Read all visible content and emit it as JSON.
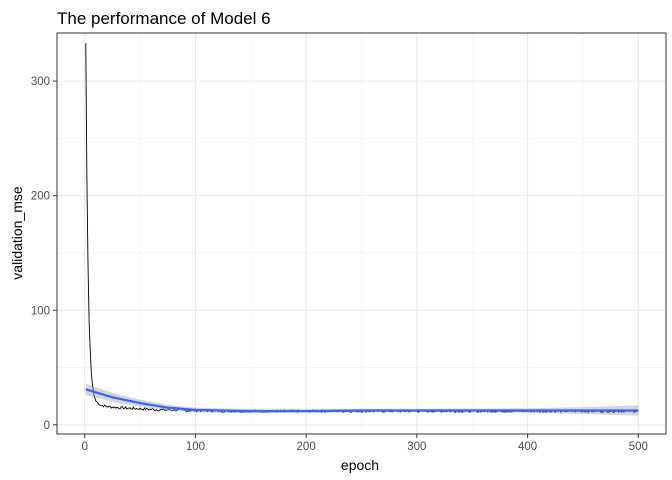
{
  "chart_data": {
    "type": "line",
    "title": "The performance of Model 6",
    "xlabel": "epoch",
    "ylabel": "validation_mse",
    "xlim": [
      -25,
      525
    ],
    "ylim": [
      -8,
      342
    ],
    "x_ticks": [
      0,
      100,
      200,
      300,
      400,
      500
    ],
    "x_tick_labels": [
      "0",
      "100",
      "200",
      "300",
      "400",
      "500"
    ],
    "y_ticks": [
      0,
      100,
      200,
      300
    ],
    "y_tick_labels": [
      "0",
      "100",
      "200",
      "300"
    ],
    "grid": true,
    "theme": "bw",
    "series": [
      {
        "style": "raw-line",
        "color": "#000000",
        "points": [
          [
            1,
            333
          ],
          [
            2,
            215
          ],
          [
            3,
            140
          ],
          [
            4,
            90
          ],
          [
            5,
            65
          ],
          [
            6,
            45
          ],
          [
            7,
            35
          ],
          [
            8,
            28
          ],
          [
            9,
            24
          ],
          [
            10,
            21
          ],
          [
            12,
            19
          ],
          [
            15,
            17
          ],
          [
            20,
            16
          ],
          [
            25,
            15.5
          ],
          [
            30,
            15
          ],
          [
            40,
            14.5
          ],
          [
            50,
            14
          ],
          [
            60,
            13.5
          ],
          [
            70,
            13
          ],
          [
            80,
            13
          ],
          [
            90,
            12.5
          ],
          [
            100,
            12.5
          ],
          [
            125,
            12
          ],
          [
            150,
            12
          ],
          [
            200,
            12
          ],
          [
            250,
            12
          ],
          [
            300,
            12
          ],
          [
            350,
            12
          ],
          [
            400,
            12
          ],
          [
            450,
            12
          ],
          [
            500,
            12
          ]
        ]
      },
      {
        "style": "smooth",
        "color": "#3366ff",
        "band_color": "#999999",
        "points": [
          [
            1,
            31
          ],
          [
            25,
            24
          ],
          [
            50,
            19
          ],
          [
            75,
            15
          ],
          [
            100,
            13
          ],
          [
            150,
            12
          ],
          [
            200,
            12
          ],
          [
            250,
            12.5
          ],
          [
            300,
            12.5
          ],
          [
            350,
            12.5
          ],
          [
            400,
            12.5
          ],
          [
            450,
            12.5
          ],
          [
            500,
            12.5
          ]
        ],
        "band_halfwidth": [
          [
            1,
            5
          ],
          [
            50,
            3
          ],
          [
            100,
            2
          ],
          [
            200,
            1.5
          ],
          [
            300,
            1.5
          ],
          [
            400,
            2
          ],
          [
            450,
            3
          ],
          [
            500,
            4.5
          ]
        ]
      }
    ]
  }
}
